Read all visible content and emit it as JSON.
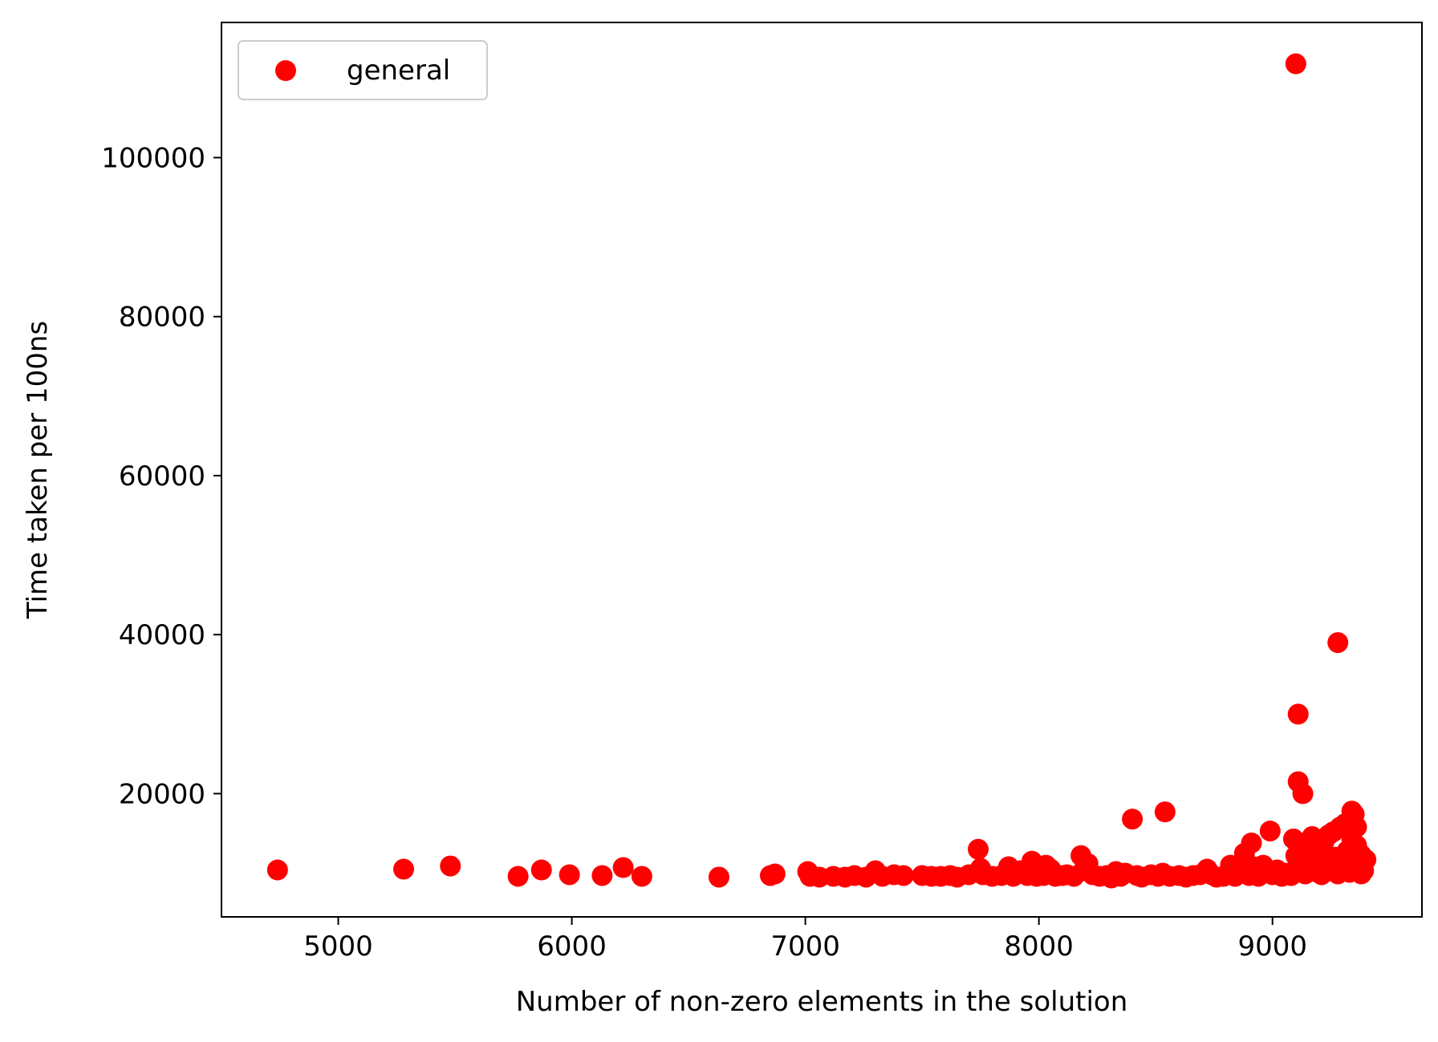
{
  "chart_data": {
    "type": "scatter",
    "title": "",
    "xlabel": "Number of non-zero elements in the solution",
    "ylabel": "Time taken per 100ns",
    "xlim": [
      4500,
      9640
    ],
    "ylim": [
      4500,
      117000
    ],
    "xticks": [
      5000,
      6000,
      7000,
      8000,
      9000
    ],
    "xtick_labels": [
      "5000",
      "6000",
      "7000",
      "8000",
      "9000"
    ],
    "yticks": [
      20000,
      40000,
      60000,
      80000,
      100000
    ],
    "ytick_labels": [
      "20000",
      "40000",
      "60000",
      "80000",
      "100000"
    ],
    "grid": false,
    "legend": {
      "position": "upper-left",
      "entries": [
        "general"
      ]
    },
    "series": [
      {
        "name": "general",
        "color": "#ff0000",
        "marker": "circle",
        "points": [
          [
            4740,
            10400
          ],
          [
            5280,
            10500
          ],
          [
            5480,
            10900
          ],
          [
            5770,
            9600
          ],
          [
            5870,
            10400
          ],
          [
            5990,
            9800
          ],
          [
            6130,
            9700
          ],
          [
            6220,
            10700
          ],
          [
            6300,
            9600
          ],
          [
            6630,
            9500
          ],
          [
            6850,
            9700
          ],
          [
            6870,
            9900
          ],
          [
            7010,
            10200
          ],
          [
            7020,
            9600
          ],
          [
            7060,
            9500
          ],
          [
            7120,
            9600
          ],
          [
            7170,
            9500
          ],
          [
            7210,
            9700
          ],
          [
            7260,
            9500
          ],
          [
            7300,
            10300
          ],
          [
            7330,
            9600
          ],
          [
            7380,
            9800
          ],
          [
            7420,
            9700
          ],
          [
            7500,
            9700
          ],
          [
            7540,
            9600
          ],
          [
            7580,
            9600
          ],
          [
            7620,
            9700
          ],
          [
            7650,
            9500
          ],
          [
            7700,
            9800
          ],
          [
            7740,
            13000
          ],
          [
            7750,
            10600
          ],
          [
            7760,
            9800
          ],
          [
            7800,
            9600
          ],
          [
            7840,
            9700
          ],
          [
            7870,
            10800
          ],
          [
            7890,
            9600
          ],
          [
            7920,
            10300
          ],
          [
            7950,
            9700
          ],
          [
            7970,
            11500
          ],
          [
            7990,
            9600
          ],
          [
            8000,
            10100
          ],
          [
            8020,
            9700
          ],
          [
            8030,
            11000
          ],
          [
            8050,
            10500
          ],
          [
            8070,
            9600
          ],
          [
            8100,
            9700
          ],
          [
            8120,
            9800
          ],
          [
            8150,
            9600
          ],
          [
            8180,
            12200
          ],
          [
            8190,
            10300
          ],
          [
            8210,
            11200
          ],
          [
            8230,
            9800
          ],
          [
            8260,
            9600
          ],
          [
            8290,
            9700
          ],
          [
            8310,
            9400
          ],
          [
            8330,
            10200
          ],
          [
            8350,
            9600
          ],
          [
            8370,
            10000
          ],
          [
            8400,
            16800
          ],
          [
            8420,
            9700
          ],
          [
            8440,
            9500
          ],
          [
            8480,
            9800
          ],
          [
            8510,
            9600
          ],
          [
            8530,
            10000
          ],
          [
            8540,
            17700
          ],
          [
            8560,
            9600
          ],
          [
            8600,
            9700
          ],
          [
            8630,
            9500
          ],
          [
            8660,
            9700
          ],
          [
            8690,
            9800
          ],
          [
            8720,
            10500
          ],
          [
            8740,
            9800
          ],
          [
            8760,
            9500
          ],
          [
            8790,
            9600
          ],
          [
            8820,
            11000
          ],
          [
            8840,
            9600
          ],
          [
            8860,
            10300
          ],
          [
            8880,
            12500
          ],
          [
            8900,
            9700
          ],
          [
            8910,
            13800
          ],
          [
            8920,
            10800
          ],
          [
            8940,
            9600
          ],
          [
            8960,
            11000
          ],
          [
            8970,
            10200
          ],
          [
            8990,
            15300
          ],
          [
            9000,
            9800
          ],
          [
            9020,
            10400
          ],
          [
            9040,
            9600
          ],
          [
            9060,
            10000
          ],
          [
            9080,
            9700
          ],
          [
            9090,
            14300
          ],
          [
            9100,
            111800
          ],
          [
            9100,
            12200
          ],
          [
            9110,
            30000
          ],
          [
            9110,
            21500
          ],
          [
            9120,
            10700
          ],
          [
            9130,
            20000
          ],
          [
            9140,
            9900
          ],
          [
            9150,
            13000
          ],
          [
            9160,
            11200
          ],
          [
            9170,
            14600
          ],
          [
            9180,
            10200
          ],
          [
            9200,
            12800
          ],
          [
            9210,
            9800
          ],
          [
            9220,
            13900
          ],
          [
            9230,
            11000
          ],
          [
            9240,
            14800
          ],
          [
            9250,
            10300
          ],
          [
            9260,
            15200
          ],
          [
            9270,
            12000
          ],
          [
            9280,
            39000
          ],
          [
            9280,
            9900
          ],
          [
            9290,
            15800
          ],
          [
            9300,
            11400
          ],
          [
            9310,
            16200
          ],
          [
            9320,
            12800
          ],
          [
            9330,
            10100
          ],
          [
            9340,
            17800
          ],
          [
            9340,
            14200
          ],
          [
            9350,
            17400
          ],
          [
            9350,
            11200
          ],
          [
            9360,
            13500
          ],
          [
            9360,
            15800
          ],
          [
            9370,
            10400
          ],
          [
            9380,
            12300
          ],
          [
            9380,
            9900
          ],
          [
            9390,
            10300
          ],
          [
            9400,
            11700
          ]
        ]
      }
    ]
  }
}
